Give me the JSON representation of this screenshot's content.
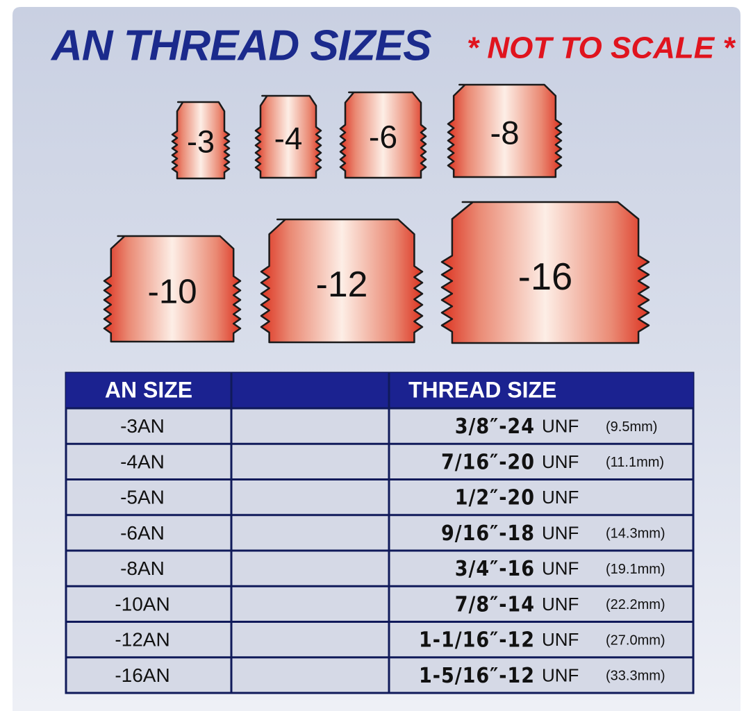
{
  "header": {
    "title": "AN THREAD SIZES",
    "note": "* NOT TO SCALE *"
  },
  "fittings": [
    "-3",
    "-4",
    "-6",
    "-8",
    "-10",
    "-12",
    "-16"
  ],
  "table": {
    "headers": [
      "AN SIZE",
      "THREAD SIZE"
    ],
    "rows": [
      {
        "an": "-3AN",
        "thread": "3/8″-24",
        "unit": "UNF",
        "mm": "(9.5mm)"
      },
      {
        "an": "-4AN",
        "thread": "7/16″-20",
        "unit": "UNF",
        "mm": "(11.1mm)"
      },
      {
        "an": "-5AN",
        "thread": "1/2″-20",
        "unit": "UNF"
      },
      {
        "an": "-6AN",
        "thread": "9/16″-18",
        "unit": "UNF",
        "mm": "(14.3mm)"
      },
      {
        "an": "-8AN",
        "thread": "3/4″-16",
        "unit": "UNF",
        "mm": "(19.1mm)"
      },
      {
        "an": "-10AN",
        "thread": "7/8″-14",
        "unit": "UNF",
        "mm": "(22.2mm)"
      },
      {
        "an": "-12AN",
        "thread": "1-1/16″-12",
        "unit": "UNF",
        "mm": "(27.0mm)"
      },
      {
        "an": "-16AN",
        "thread": "1-5/16″-12",
        "unit": "UNF",
        "mm": "(33.3mm)"
      }
    ]
  }
}
